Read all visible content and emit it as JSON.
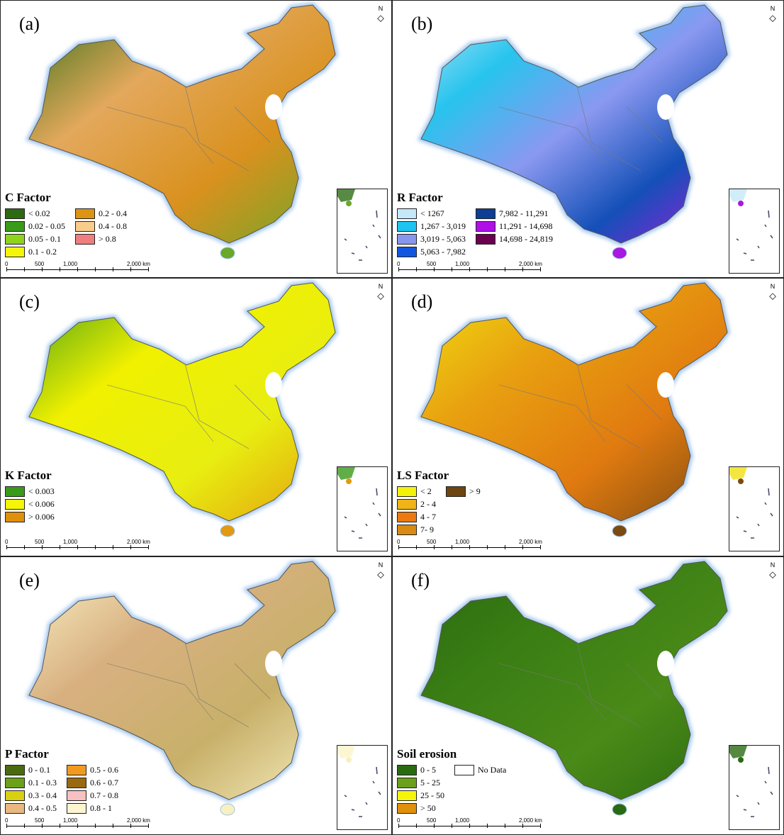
{
  "scale": {
    "labels": [
      "0",
      "500",
      "1,000",
      "2,000 km"
    ]
  },
  "north_label": "N",
  "panels": [
    {
      "label": "(a)",
      "title": "C Factor",
      "colors": [
        "#2d6e14",
        "#e3a85c",
        "#d9911e",
        "#6aa82a"
      ],
      "legend": [
        {
          "label": "< 0.02",
          "color": "#2d6a12"
        },
        {
          "label": "0.02 - 0.05",
          "color": "#3a9a1a"
        },
        {
          "label": "0.05 - 0.1",
          "color": "#8fd41a"
        },
        {
          "label": "0.1 - 0.2",
          "color": "#f5f50a"
        },
        {
          "label": "0.2 - 0.4",
          "color": "#dc9412"
        },
        {
          "label": "0.4 - 0.8",
          "color": "#f8cc8a"
        },
        {
          "label": "> 0.8",
          "color": "#f07e7e"
        }
      ]
    },
    {
      "label": "(b)",
      "title": "R Factor",
      "colors": [
        "#c4e8f8",
        "#27c4ee",
        "#8a98f0",
        "#1450b8",
        "#a818e0"
      ],
      "legend": [
        {
          "label": "< 1267",
          "color": "#c4e8f8"
        },
        {
          "label": "1,267 - 3,019",
          "color": "#1ec4f0"
        },
        {
          "label": "3,019 - 5,063",
          "color": "#8896ee"
        },
        {
          "label": "5,063 - 7,982",
          "color": "#1256e0"
        },
        {
          "label": "7,982 - 11,291",
          "color": "#0e3e96"
        },
        {
          "label": "11,291 - 14,698",
          "color": "#b010e8"
        },
        {
          "label": "14,698 - 24,819",
          "color": "#6a0050"
        }
      ]
    },
    {
      "label": "(c)",
      "title": "K Factor",
      "colors": [
        "#3a9a1a",
        "#f0f000",
        "#e8ee10",
        "#e39a10"
      ],
      "legend": [
        {
          "label": "< 0.003",
          "color": "#3a9a1a"
        },
        {
          "label": "< 0.006",
          "color": "#f5f50a"
        },
        {
          "label": "> 0.006",
          "color": "#e0900a"
        }
      ]
    },
    {
      "label": "(d)",
      "title": "LS Factor",
      "colors": [
        "#f0e010",
        "#e8a010",
        "#e07a10",
        "#7a4a10"
      ],
      "legend": [
        {
          "label": "< 2",
          "color": "#f5f20a"
        },
        {
          "label": "2 - 4",
          "color": "#f0b418"
        },
        {
          "label": "4 - 7",
          "color": "#ec7a10"
        },
        {
          "label": "7- 9",
          "color": "#d98a10"
        },
        {
          "label": "> 9",
          "color": "#6e4410"
        }
      ]
    },
    {
      "label": "(e)",
      "title": "P Factor",
      "colors": [
        "#fbf4c8",
        "#d8b080",
        "#c8b06a",
        "#f8f0c0"
      ],
      "legend": [
        {
          "label": "0 - 0.1",
          "color": "#4a6a10"
        },
        {
          "label": "0.1 - 0.3",
          "color": "#6aa01a"
        },
        {
          "label": "0.3 - 0.4",
          "color": "#d8d010"
        },
        {
          "label": "0.4 - 0.5",
          "color": "#e8b880"
        },
        {
          "label": "0.5 - 0.6",
          "color": "#f09a20"
        },
        {
          "label": "0.6 - 0.7",
          "color": "#9a6a10"
        },
        {
          "label": "0.7 - 0.8",
          "color": "#f8c0c0"
        },
        {
          "label": "0.8 - 1",
          "color": "#fcf6d0"
        }
      ]
    },
    {
      "label": "(f)",
      "title": "Soil erosion",
      "colors": [
        "#2a6a10",
        "#3a7e14",
        "#4a8a18",
        "#2a6a10"
      ],
      "legend": [
        {
          "label": "0 - 5",
          "color": "#2a6a10"
        },
        {
          "label": "5 - 25",
          "color": "#6aa01a"
        },
        {
          "label": "25 - 50",
          "color": "#f5f50a"
        },
        {
          "label": "> 50",
          "color": "#e0900a"
        },
        {
          "label": "No Data",
          "color": "#ffffff"
        }
      ]
    }
  ]
}
